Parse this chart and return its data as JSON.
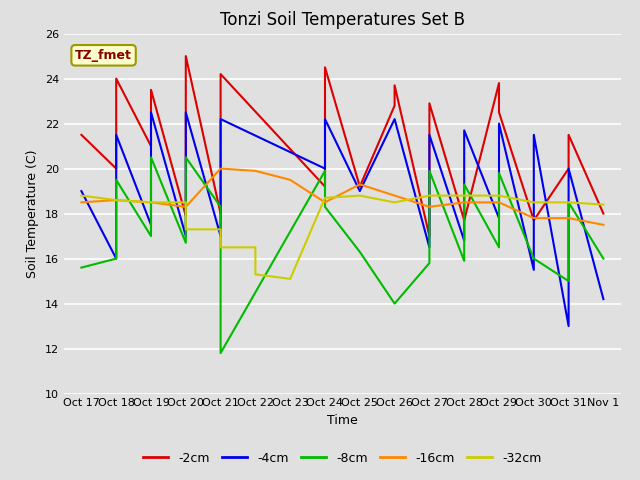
{
  "title": "Tonzi Soil Temperatures Set B",
  "xlabel": "Time",
  "ylabel": "Soil Temperature (C)",
  "ylim": [
    10,
    26
  ],
  "x_labels": [
    "Oct 17",
    "Oct 18",
    "Oct 19",
    "Oct 20",
    "Oct 21",
    "Oct 22",
    "Oct 23",
    "Oct 24",
    "Oct 25",
    "Oct 26",
    "Oct 27",
    "Oct 28",
    "Oct 29",
    "Oct 30",
    "Oct 31",
    "Nov 1"
  ],
  "annotation_text": "TZ_fmet",
  "series": {
    "-2cm": {
      "color": "#dd0000",
      "x": [
        0,
        1,
        1,
        2,
        2,
        3,
        3,
        4,
        4,
        7,
        7,
        8,
        9,
        9,
        10,
        10,
        11,
        12,
        12,
        13,
        14,
        14,
        15
      ],
      "y": [
        21.5,
        20.0,
        24.0,
        21.0,
        23.5,
        17.9,
        25.0,
        18.0,
        24.2,
        19.2,
        24.5,
        19.2,
        22.8,
        23.7,
        17.0,
        22.9,
        17.7,
        23.8,
        22.5,
        17.7,
        20.0,
        21.5,
        18.0
      ]
    },
    "-4cm": {
      "color": "#0000ee",
      "x": [
        0,
        1,
        1,
        2,
        2,
        3,
        3,
        4,
        4,
        7,
        7,
        8,
        9,
        10,
        10,
        11,
        11,
        12,
        12,
        13,
        13,
        14,
        14,
        15
      ],
      "y": [
        19.0,
        16.0,
        21.5,
        17.5,
        22.5,
        17.0,
        22.5,
        17.0,
        22.2,
        20.0,
        22.2,
        19.0,
        22.2,
        16.5,
        21.5,
        16.8,
        21.7,
        17.8,
        22.0,
        15.5,
        21.5,
        13.0,
        20.0,
        14.2
      ]
    },
    "-8cm": {
      "color": "#00bb00",
      "x": [
        0,
        1,
        1,
        2,
        2,
        3,
        3,
        4,
        4,
        7,
        7,
        8,
        9,
        10,
        10,
        11,
        11,
        12,
        12,
        13,
        13,
        14,
        14,
        15
      ],
      "y": [
        15.6,
        16.0,
        19.5,
        17.0,
        20.5,
        16.7,
        20.5,
        18.3,
        11.8,
        19.9,
        18.3,
        16.3,
        14.0,
        15.8,
        19.9,
        15.9,
        19.3,
        16.5,
        19.8,
        16.0,
        16.0,
        15.0,
        18.5,
        16.0
      ]
    },
    "-16cm": {
      "color": "#ff8800",
      "x": [
        0,
        1,
        2,
        3,
        4,
        5,
        6,
        7,
        8,
        9,
        10,
        11,
        12,
        13,
        14,
        15
      ],
      "y": [
        18.5,
        18.6,
        18.5,
        18.3,
        20.0,
        19.9,
        19.5,
        18.5,
        19.3,
        18.8,
        18.3,
        18.5,
        18.5,
        17.8,
        17.8,
        17.5
      ]
    },
    "-32cm": {
      "color": "#cccc00",
      "x": [
        0,
        1,
        2,
        3,
        3,
        4,
        4,
        5,
        5,
        6,
        7,
        8,
        9,
        10,
        11,
        12,
        13,
        14,
        15
      ],
      "y": [
        18.8,
        18.6,
        18.5,
        18.5,
        17.3,
        17.3,
        16.5,
        16.5,
        15.3,
        15.1,
        18.7,
        18.8,
        18.5,
        18.8,
        18.8,
        18.8,
        18.5,
        18.5,
        18.4
      ]
    }
  },
  "legend": [
    {
      "label": "-2cm",
      "color": "#dd0000"
    },
    {
      "label": "-4cm",
      "color": "#0000ee"
    },
    {
      "label": "-8cm",
      "color": "#00bb00"
    },
    {
      "label": "-16cm",
      "color": "#ff8800"
    },
    {
      "label": "-32cm",
      "color": "#cccc00"
    }
  ],
  "background_color": "#e0e0e0",
  "plot_bg_color": "#e0e0e0",
  "grid_color": "#ffffff",
  "title_fontsize": 12,
  "axis_label_fontsize": 9,
  "tick_fontsize": 8
}
